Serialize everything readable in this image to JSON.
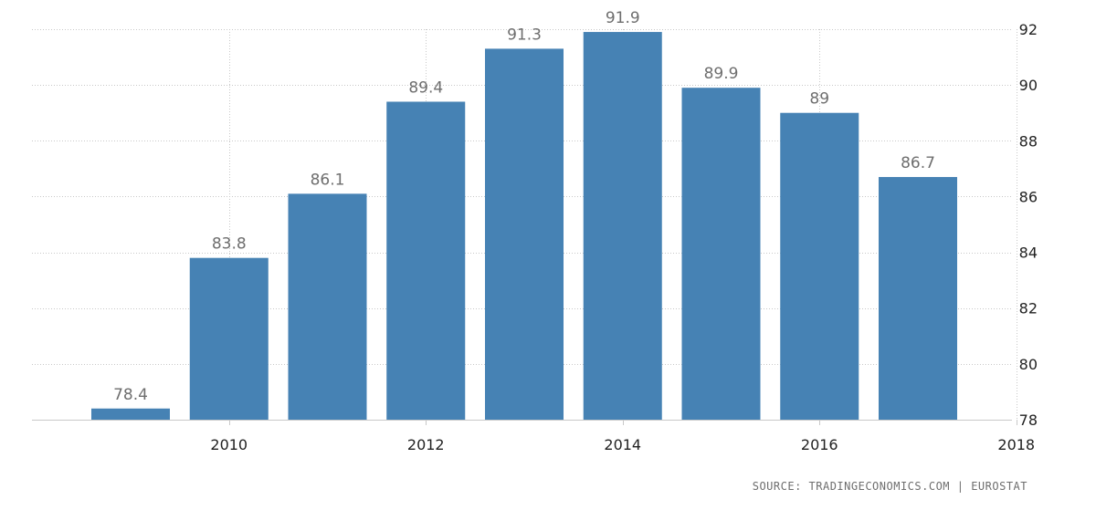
{
  "chart_data": {
    "type": "bar",
    "categories": [
      "2009",
      "2010",
      "2011",
      "2012",
      "2013",
      "2014",
      "2015",
      "2016",
      "2017"
    ],
    "values": [
      78.4,
      83.8,
      86.1,
      89.4,
      91.3,
      91.9,
      89.9,
      89,
      86.7
    ],
    "value_labels": [
      "78.4",
      "83.8",
      "86.1",
      "89.4",
      "91.3",
      "91.9",
      "89.9",
      "89",
      "86.7"
    ],
    "x_tick_labels": [
      "2010",
      "2012",
      "2014",
      "2016",
      "2018"
    ],
    "y_tick_labels": [
      "78",
      "80",
      "82",
      "84",
      "86",
      "88",
      "90",
      "92"
    ],
    "ylim": [
      78,
      92
    ],
    "y_axis_side": "right",
    "grid": true,
    "bar_color": "#4682b4"
  },
  "source": {
    "text": "SOURCE: TRADINGECONOMICS.COM | EUROSTAT"
  }
}
